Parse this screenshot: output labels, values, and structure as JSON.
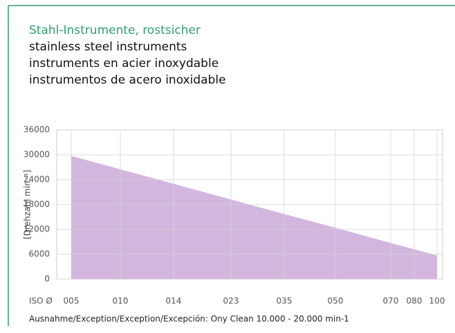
{
  "header": {
    "title": "Stahl-Instrumente, rostsicher",
    "lines": [
      "stainless steel instruments",
      "instruments en acier inoxydable",
      "instrumentos de acero inoxidable"
    ]
  },
  "chart_data": {
    "type": "area",
    "y_label": "[Drehzahl min⁻¹]",
    "x_label": "ISO Ø",
    "categories": [
      "005",
      "010",
      "014",
      "023",
      "035",
      "050",
      "070",
      "080",
      "100"
    ],
    "values": [
      29700,
      26500,
      23000,
      19200,
      15700,
      12400,
      8700,
      7200,
      5700
    ],
    "color": "#cba9d8",
    "ylim": [
      0,
      36000
    ],
    "yticks": [
      0,
      6000,
      12000,
      18000,
      24000,
      30000,
      36000
    ],
    "grid": true
  },
  "footnote": "Ausnahme/Exception/Exception/Excepción: Ony Clean 10.000 - 20.000 min-1"
}
